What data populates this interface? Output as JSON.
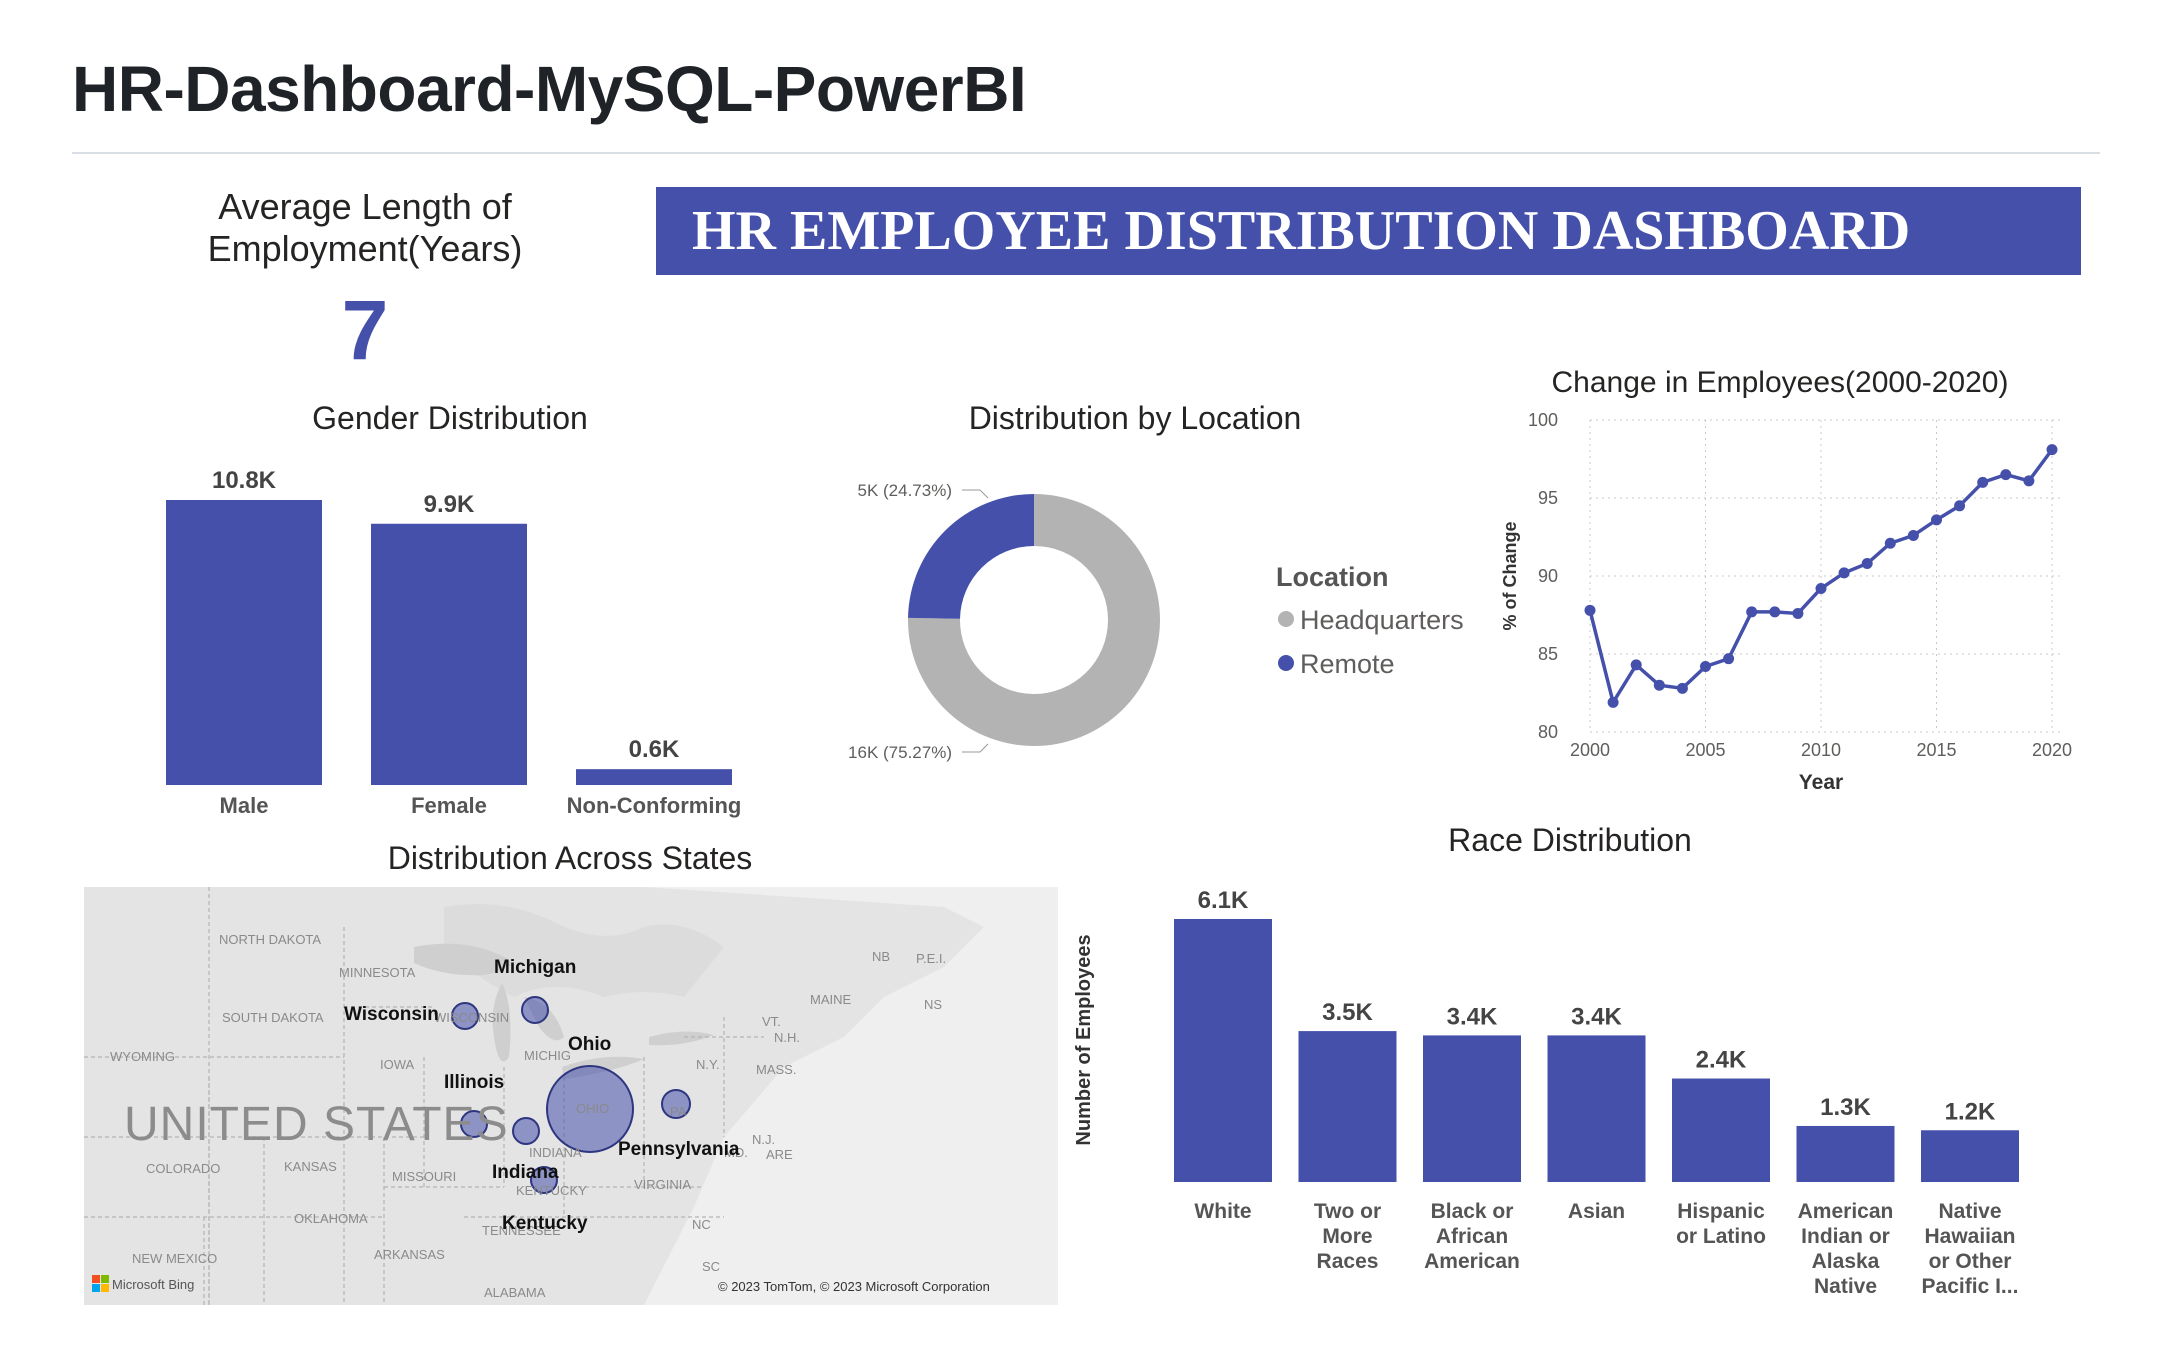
{
  "page": {
    "title": "HR-Dashboard-MySQL-PowerBI"
  },
  "banner": {
    "title": "HR EMPLOYEE DISTRIBUTION DASHBOARD"
  },
  "colors": {
    "accent": "#4550ab",
    "headquarters": "#b3b3b3",
    "remote": "#4550ab",
    "map_bg": "#e4e4e4"
  },
  "kpi": {
    "label_line1": "Average Length of",
    "label_line2": "Employment(Years)",
    "value": "7"
  },
  "chart_data": [
    {
      "type": "bar",
      "title": "Gender Distribution",
      "categories": [
        "Male",
        "Female",
        "Non-Conforming"
      ],
      "values": [
        10.8,
        9.9,
        0.6
      ],
      "data_labels": [
        "10.8K",
        "9.9K",
        "0.6K"
      ],
      "ylim": [
        0,
        10.8
      ]
    },
    {
      "type": "pie",
      "title": "Distribution by Location",
      "legend_title": "Location",
      "legend": "right",
      "slices": [
        {
          "name": "Headquarters",
          "value": 75.27,
          "label": "16K (75.27%)"
        },
        {
          "name": "Remote",
          "value": 24.73,
          "label": "5K (24.73%)"
        }
      ]
    },
    {
      "type": "line",
      "title": "Change in Employees(2000-2020)",
      "xlabel": "Year",
      "ylabel": "% of Change",
      "xlim": [
        2000,
        2020
      ],
      "ylim": [
        80,
        100
      ],
      "xticks": [
        "2000",
        "2005",
        "2010",
        "2015",
        "2020"
      ],
      "yticks": [
        "80",
        "85",
        "90",
        "95",
        "100"
      ],
      "grid": true,
      "x": [
        2000,
        2001,
        2002,
        2003,
        2004,
        2005,
        2006,
        2007,
        2008,
        2009,
        2010,
        2011,
        2012,
        2013,
        2014,
        2015,
        2016,
        2017,
        2018,
        2019,
        2020
      ],
      "values": [
        87.8,
        81.9,
        84.3,
        83.0,
        82.8,
        84.2,
        84.7,
        87.7,
        87.7,
        87.6,
        89.2,
        90.2,
        90.8,
        92.1,
        92.6,
        93.6,
        94.5,
        96.0,
        96.5,
        96.1,
        98.1
      ]
    },
    {
      "type": "bar",
      "title": "Race Distribution",
      "ylabel": "Number of Employees",
      "categories": [
        [
          "White"
        ],
        [
          "Two or",
          "More",
          "Races"
        ],
        [
          "Black or",
          "African",
          "American"
        ],
        [
          "Asian"
        ],
        [
          "Hispanic",
          "or Latino"
        ],
        [
          "American",
          "Indian or",
          "Alaska",
          "Native"
        ],
        [
          "Native",
          "Hawaiian",
          "or Other",
          "Pacific I..."
        ]
      ],
      "values": [
        6.1,
        3.5,
        3.4,
        3.4,
        2.4,
        1.3,
        1.2
      ],
      "data_labels": [
        "6.1K",
        "3.5K",
        "3.4K",
        "3.4K",
        "2.4K",
        "1.3K",
        "1.2K"
      ],
      "ylim": [
        0,
        6.1
      ]
    }
  ],
  "map": {
    "title": "Distribution Across States",
    "country_label": "UNITED STATES",
    "copyright": "© 2023 TomTom, © 2023 Microsoft Corporation",
    "logo_text": "Microsoft Bing",
    "state_labels": [
      "Michigan",
      "Wisconsin",
      "Ohio",
      "Illinois",
      "Pennsylvania",
      "Indiana",
      "Kentucky"
    ],
    "base_labels": [
      "NORTH DAKOTA",
      "MINNESOTA",
      "SOUTH DAKOTA",
      "WYOMING",
      "IOWA",
      "COLORADO",
      "KANSAS",
      "MISSOURI",
      "OKLAHOMA",
      "NEW MEXICO",
      "ARKANSAS",
      "ALABAMA",
      "NC",
      "SC",
      "VIRGINIA",
      "N.Y.",
      "MAINE",
      "NB",
      "P.E.I.",
      "NS",
      "VT.",
      "N.H.",
      "MASS.",
      "N.J.",
      "MD.",
      "ARE",
      "WISCONSIN",
      "MICHIG",
      "OHIO",
      "INDIANA",
      "KENTUCKY",
      "TENNESSEE",
      "PA"
    ]
  }
}
